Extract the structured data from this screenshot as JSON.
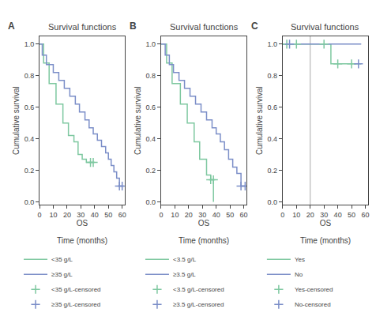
{
  "chart_data": [
    {
      "type": "line",
      "panel_label": "A",
      "title": "Survival functions",
      "xlabel": "OS",
      "ylabel": "Cumulative survival",
      "annotations": [
        "Time (months)"
      ],
      "xlim": [
        0,
        62
      ],
      "ylim": [
        -0.02,
        1.05
      ],
      "xticks": [
        0,
        10,
        20,
        30,
        40,
        50,
        60
      ],
      "yticks": [
        {
          "value": 0.0,
          "label": "0.0"
        },
        0.2,
        0.4,
        0.6,
        0.8,
        {
          "value": 1.0,
          "label": "1.0"
        }
      ],
      "grid": false,
      "legend": "bottom",
      "series": [
        {
          "name": "<35 g/L",
          "type": "line",
          "line_style": "step",
          "color": "#7ec8a0",
          "x": [
            0,
            3,
            3,
            7,
            7,
            12,
            12,
            17,
            17,
            21,
            21,
            25,
            25,
            28,
            28,
            31,
            31,
            34,
            34,
            37,
            37,
            39,
            39
          ],
          "values": [
            1.0,
            1.0,
            0.88,
            0.88,
            0.75,
            0.75,
            0.62,
            0.62,
            0.5,
            0.5,
            0.42,
            0.42,
            0.38,
            0.38,
            0.3,
            0.3,
            0.27,
            0.27,
            0.25,
            0.25,
            0.25,
            0.25,
            0.25
          ]
        },
        {
          "name": "≥35 g/L",
          "type": "line",
          "line_style": "step",
          "color": "#7b8ec8",
          "x": [
            0,
            2,
            2,
            5,
            5,
            10,
            10,
            14,
            14,
            18,
            18,
            22,
            22,
            26,
            26,
            29,
            29,
            33,
            33,
            36,
            36,
            39,
            39,
            42,
            42,
            45,
            45,
            48,
            48,
            50,
            50,
            52,
            52,
            54,
            54,
            56,
            56,
            58,
            58,
            60
          ],
          "values": [
            1.0,
            1.0,
            0.93,
            0.93,
            0.87,
            0.87,
            0.82,
            0.82,
            0.77,
            0.77,
            0.72,
            0.72,
            0.67,
            0.67,
            0.62,
            0.62,
            0.57,
            0.57,
            0.52,
            0.52,
            0.47,
            0.47,
            0.43,
            0.43,
            0.39,
            0.39,
            0.35,
            0.35,
            0.31,
            0.31,
            0.27,
            0.27,
            0.23,
            0.23,
            0.19,
            0.19,
            0.15,
            0.15,
            0.1,
            0.1
          ]
        },
        {
          "name": "<35 g/L-censored",
          "type": "scatter",
          "marker": "+",
          "color": "#7ec8a0",
          "x": [
            37,
            39
          ],
          "values": [
            0.25,
            0.25
          ]
        },
        {
          "name": "≥35 g/L-censored",
          "type": "scatter",
          "marker": "+",
          "color": "#7b8ec8",
          "x": [
            58,
            60
          ],
          "values": [
            0.1,
            0.1
          ]
        }
      ]
    },
    {
      "type": "line",
      "panel_label": "B",
      "title": "Survival functions",
      "xlabel": "OS",
      "ylabel": "Cumulative survival",
      "annotations": [
        "Time (months)"
      ],
      "xlim": [
        0,
        62
      ],
      "ylim": [
        -0.02,
        1.05
      ],
      "xticks": [
        0,
        10,
        20,
        30,
        40,
        50,
        60
      ],
      "yticks": [
        {
          "value": 0.0,
          "label": "0.0"
        },
        0.2,
        0.4,
        0.6,
        0.8,
        {
          "value": 1.0,
          "label": "1.0"
        }
      ],
      "grid": false,
      "legend": "bottom",
      "series": [
        {
          "name": "<3.5 g/L",
          "type": "line",
          "line_style": "step",
          "color": "#7ec8a0",
          "x": [
            0,
            4,
            4,
            8,
            8,
            14,
            14,
            19,
            19,
            24,
            24,
            28,
            28,
            33,
            33,
            36,
            36,
            38,
            38
          ],
          "values": [
            1.0,
            1.0,
            0.88,
            0.88,
            0.75,
            0.75,
            0.62,
            0.62,
            0.5,
            0.5,
            0.38,
            0.38,
            0.27,
            0.27,
            0.17,
            0.17,
            0.14,
            0.14,
            0.0
          ]
        },
        {
          "name": "≥3.5 g/L",
          "type": "line",
          "line_style": "step",
          "color": "#7b8ec8",
          "x": [
            0,
            3,
            3,
            6,
            6,
            9,
            9,
            13,
            13,
            17,
            17,
            21,
            21,
            25,
            25,
            29,
            29,
            33,
            33,
            37,
            37,
            40,
            40,
            43,
            43,
            46,
            46,
            49,
            49,
            52,
            52,
            55,
            55,
            58,
            58,
            61
          ],
          "values": [
            1.0,
            1.0,
            0.93,
            0.93,
            0.87,
            0.87,
            0.82,
            0.82,
            0.77,
            0.77,
            0.72,
            0.72,
            0.67,
            0.67,
            0.62,
            0.62,
            0.57,
            0.57,
            0.52,
            0.52,
            0.47,
            0.47,
            0.43,
            0.43,
            0.38,
            0.38,
            0.33,
            0.33,
            0.27,
            0.27,
            0.22,
            0.22,
            0.18,
            0.18,
            0.1,
            0.1
          ]
        },
        {
          "name": "<3.5 g/L-censored",
          "type": "scatter",
          "marker": "+",
          "color": "#7ec8a0",
          "x": [
            36,
            38
          ],
          "values": [
            0.14,
            0.14
          ]
        },
        {
          "name": "≥3.5 g/L-censored",
          "type": "scatter",
          "marker": "+",
          "color": "#7b8ec8",
          "x": [
            58,
            61
          ],
          "values": [
            0.1,
            0.1
          ]
        }
      ]
    },
    {
      "type": "line",
      "panel_label": "C",
      "title": "Survival functions",
      "xlabel": "OS",
      "ylabel": "Cumulative survival",
      "annotations": [
        "Time (months)"
      ],
      "xlim": [
        0,
        62
      ],
      "ylim": [
        -0.02,
        1.05
      ],
      "xticks": [
        0,
        10,
        20,
        30,
        40,
        50,
        60
      ],
      "yticks": [
        {
          "value": 0.0,
          "label": "0.0"
        },
        0.2,
        0.4,
        0.6,
        0.8,
        {
          "value": 1.0,
          "label": "1.0"
        }
      ],
      "grid": false,
      "legend": "bottom",
      "vertical_lines": [
        {
          "x": 20,
          "color": "#aaaaaa"
        }
      ],
      "series": [
        {
          "name": "Yes",
          "type": "line",
          "line_style": "step",
          "color": "#7ec8a0",
          "x": [
            0,
            35,
            35,
            57
          ],
          "values": [
            1.0,
            1.0,
            0.875,
            0.875
          ]
        },
        {
          "name": "No",
          "type": "line",
          "line_style": "step",
          "color": "#7b8ec8",
          "x": [
            0,
            57
          ],
          "values": [
            1.0,
            1.0
          ]
        },
        {
          "name": "Yes-censored",
          "type": "scatter",
          "marker": "+",
          "color": "#7ec8a0",
          "x": [
            3,
            10,
            30,
            40,
            50
          ],
          "values": [
            1.0,
            1.0,
            1.0,
            0.875,
            0.875
          ]
        },
        {
          "name": "No-censored",
          "type": "scatter",
          "marker": "+",
          "color": "#7b8ec8",
          "x": [
            5,
            55
          ],
          "values": [
            1.0,
            0.875
          ]
        }
      ]
    }
  ]
}
